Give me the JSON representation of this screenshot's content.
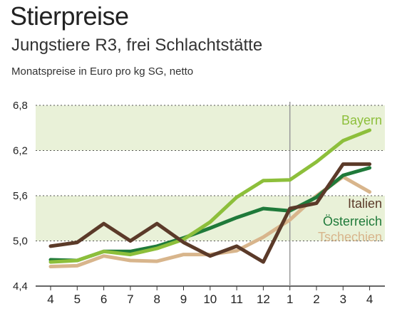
{
  "header": {
    "title": "Stierpreise",
    "subtitle": "Jungstiere R3, frei Schlachtstätte",
    "description": "Monatspreise in Euro pro kg SG, netto"
  },
  "chart_data": {
    "type": "line",
    "title": "Stierpreise",
    "subtitle": "Jungstiere R3, frei Schlachtstätte",
    "ylabel": "Monatspreise in Euro pro kg SG, netto",
    "xlabel": "",
    "categories": [
      "4",
      "5",
      "6",
      "7",
      "8",
      "9",
      "10",
      "11",
      "12",
      "1",
      "2",
      "3",
      "4"
    ],
    "y_ticks": [
      "6,8",
      "6,2",
      "5,6",
      "5,0",
      "4,4"
    ],
    "ylim": [
      4.4,
      6.8
    ],
    "grid": "horizontal bands",
    "series": [
      {
        "name": "Bayern",
        "color": "#8dbf3b",
        "values": [
          4.72,
          4.74,
          4.86,
          4.82,
          4.9,
          5.02,
          5.25,
          5.58,
          5.8,
          5.81,
          6.05,
          6.33,
          6.47
        ]
      },
      {
        "name": "Italien",
        "color": "#5b3a29",
        "values": [
          4.93,
          4.98,
          5.23,
          5.0,
          5.23,
          4.98,
          4.8,
          4.93,
          4.72,
          5.43,
          5.5,
          6.02,
          6.02
        ]
      },
      {
        "name": "Österreich",
        "color": "#1f7a3a",
        "values": [
          4.75,
          4.74,
          4.86,
          4.86,
          4.93,
          5.04,
          5.17,
          5.31,
          5.43,
          5.4,
          5.58,
          5.87,
          5.97
        ]
      },
      {
        "name": "Tschechien",
        "color": "#d8b58c",
        "values": [
          4.66,
          4.67,
          4.8,
          4.74,
          4.73,
          4.82,
          4.82,
          4.87,
          5.05,
          5.28,
          5.6,
          5.85,
          5.65
        ]
      }
    ],
    "annotations": [
      {
        "type": "vertical-line",
        "at": "1"
      }
    ]
  }
}
